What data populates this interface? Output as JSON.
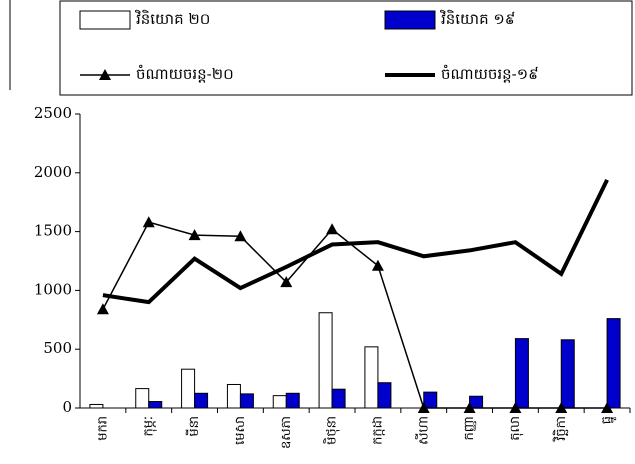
{
  "chart_data": {
    "type": "bar",
    "categories": [
      "មករា",
      "កុម្ភៈ",
      "មីនា",
      "មេសា",
      "ឧសភា",
      "មិថុនា",
      "កក្កដា",
      "សីហា",
      "កញ្ញា",
      "តុលា",
      "វិច្ឆិកា",
      "ធ្នូ"
    ],
    "series": [
      {
        "name": "វិនិយោគ ២០",
        "type": "bar",
        "color": "#ffffff",
        "values": [
          30,
          165,
          330,
          200,
          105,
          810,
          520,
          0,
          0,
          0,
          0,
          0
        ]
      },
      {
        "name": "វិនិយោគ ១៩",
        "type": "bar",
        "color": "#0000cc",
        "values": [
          0,
          55,
          125,
          120,
          125,
          160,
          215,
          135,
          100,
          590,
          580,
          760
        ]
      },
      {
        "name": "ចំណាយចរន្ត-២០",
        "type": "line",
        "color": "#000000",
        "marker": "triangle",
        "values": [
          840,
          1580,
          1470,
          1460,
          1070,
          1520,
          1210,
          0,
          0,
          0,
          0,
          0
        ]
      },
      {
        "name": "ចំណាយចរន្ត-១៩",
        "type": "line",
        "color": "#000000",
        "values": [
          960,
          900,
          1270,
          1020,
          1200,
          1390,
          1410,
          1290,
          1340,
          1410,
          1140,
          1940
        ]
      }
    ],
    "ylim": [
      0,
      2500
    ],
    "yticks": [
      0,
      500,
      1000,
      1500,
      2000,
      2500
    ],
    "grid": false
  }
}
